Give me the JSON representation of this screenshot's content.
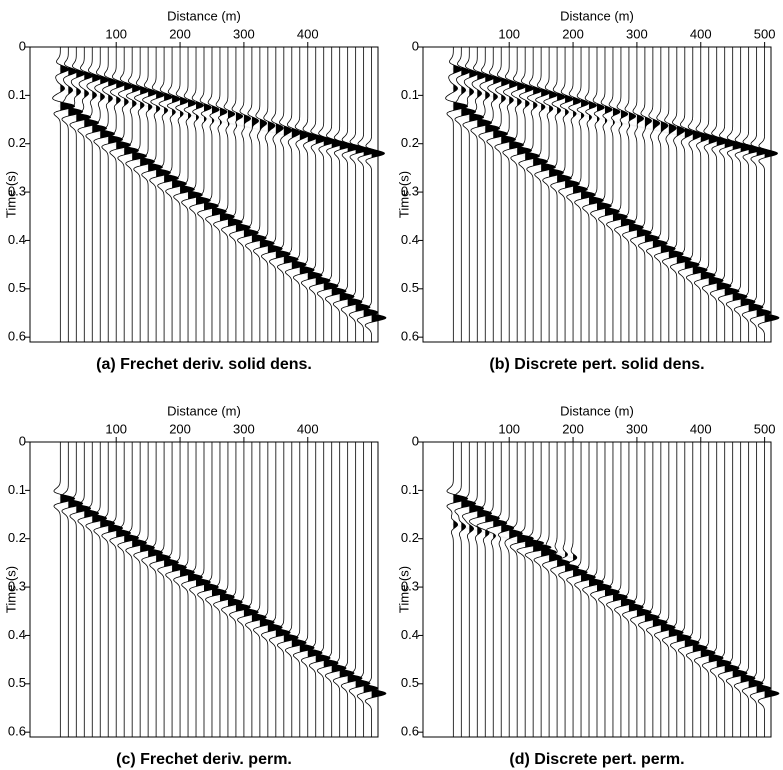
{
  "chart_data": [
    {
      "type": "wiggle",
      "x_label": "Distance (m)",
      "y_label": "Time (s)",
      "caption": "(a) Frechet deriv. solid dens.",
      "xlim": [
        -35,
        510
      ],
      "xticks": [
        100,
        200,
        300,
        400
      ],
      "ylim": [
        0,
        0.61
      ],
      "yticks": [
        0,
        0.1,
        0.2,
        0.3,
        0.4,
        0.5,
        0.6
      ],
      "trace_spacing": 12.5,
      "events": [
        {
          "x": [
            10,
            250,
            500
          ],
          "t": [
            0.045,
            0.13,
            0.22
          ],
          "amp": 1.2
        },
        {
          "x": [
            10,
            250,
            500
          ],
          "t": [
            0.085,
            0.15,
            0.22
          ],
          "amp": 0.6
        },
        {
          "x": [
            10,
            250,
            500
          ],
          "t": [
            0.12,
            0.34,
            0.56
          ],
          "amp": 2
        }
      ]
    },
    {
      "type": "wiggle",
      "x_label": "Distance (m)",
      "y_label": "Time (s)",
      "caption": "(b) Discrete pert. solid dens.",
      "xlim": [
        -35,
        510
      ],
      "xticks": [
        100,
        200,
        300,
        400,
        500
      ],
      "ylim": [
        0,
        0.61
      ],
      "yticks": [
        0,
        0.1,
        0.2,
        0.3,
        0.4,
        0.5,
        0.6
      ],
      "trace_spacing": 12.5,
      "events": [
        {
          "x": [
            10,
            250,
            500
          ],
          "t": [
            0.045,
            0.13,
            0.22
          ],
          "amp": 1.2
        },
        {
          "x": [
            10,
            250,
            500
          ],
          "t": [
            0.085,
            0.15,
            0.22
          ],
          "amp": 0.6
        },
        {
          "x": [
            10,
            250,
            500
          ],
          "t": [
            0.12,
            0.34,
            0.56
          ],
          "amp": 2
        }
      ]
    },
    {
      "type": "wiggle",
      "x_label": "Distance (m)",
      "y_label": "Time (s)",
      "caption": "(c) Frechet deriv. perm.",
      "xlim": [
        -35,
        510
      ],
      "xticks": [
        100,
        200,
        300,
        400
      ],
      "ylim": [
        0,
        0.61
      ],
      "yticks": [
        0,
        0.1,
        0.2,
        0.3,
        0.4,
        0.5,
        0.6
      ],
      "trace_spacing": 12.5,
      "events": [
        {
          "x": [
            10,
            250,
            500
          ],
          "t": [
            0.115,
            0.31,
            0.52
          ],
          "amp": 2
        }
      ]
    },
    {
      "type": "wiggle",
      "x_label": "Distance (m)",
      "y_label": "Time (s)",
      "caption": "(d) Discrete pert. perm.",
      "xlim": [
        -35,
        510
      ],
      "xticks": [
        100,
        200,
        300,
        400,
        500
      ],
      "ylim": [
        0,
        0.61
      ],
      "yticks": [
        0,
        0.1,
        0.2,
        0.3,
        0.4,
        0.5,
        0.6
      ],
      "trace_spacing": 12.5,
      "events": [
        {
          "x": [
            10,
            250,
            500
          ],
          "t": [
            0.115,
            0.31,
            0.52
          ],
          "amp": 2
        },
        {
          "x": [
            10,
            100,
            200
          ],
          "t": [
            0.17,
            0.2,
            0.24
          ],
          "amp": 0.6
        }
      ]
    }
  ]
}
